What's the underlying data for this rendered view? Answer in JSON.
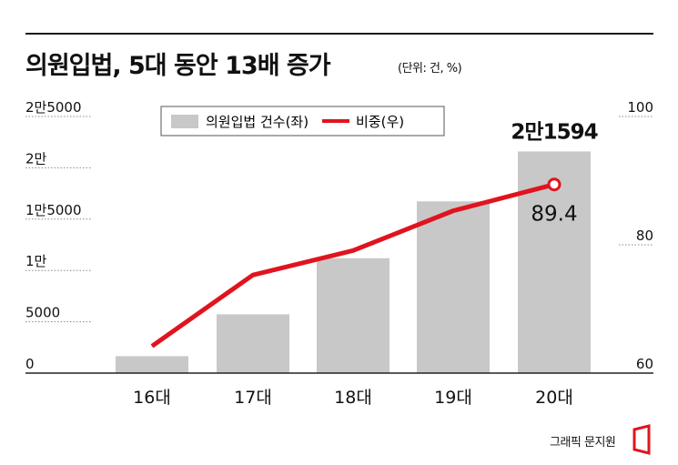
{
  "header": {
    "title": "의원입법, 5대 동안 13배 증가",
    "subtitle": "(단위: 건, %)"
  },
  "credit": "그래픽 문지원",
  "colors": {
    "bar": "#c8c8c8",
    "line": "#e0141e",
    "text": "#111111"
  },
  "chart_data": {
    "type": "bar",
    "categories": [
      "16대",
      "17대",
      "18대",
      "19대",
      "20대"
    ],
    "series": [
      {
        "name": "의원입법 건수(좌)",
        "type": "bar",
        "axis": "left",
        "values": [
          1651,
          5728,
          11191,
          16729,
          21594
        ]
      },
      {
        "name": "비중(우)",
        "type": "line",
        "axis": "right",
        "values": [
          64.2,
          75.3,
          79.1,
          85.3,
          89.4
        ]
      }
    ],
    "left_axis": {
      "ticks": [
        0,
        5000,
        10000,
        15000,
        20000,
        25000
      ],
      "tick_labels": [
        "0",
        "5000",
        "1만",
        "1만5000",
        "2만",
        "2만5000"
      ],
      "ylim": [
        0,
        25000
      ]
    },
    "right_axis": {
      "ticks": [
        60,
        80,
        100
      ],
      "tick_labels": [
        "60",
        "80",
        "100"
      ],
      "ylim": [
        60,
        100
      ]
    },
    "annotations": {
      "bar_last": "2만1594",
      "line_last": "89.4"
    },
    "legend": "top-center",
    "grid": false
  }
}
